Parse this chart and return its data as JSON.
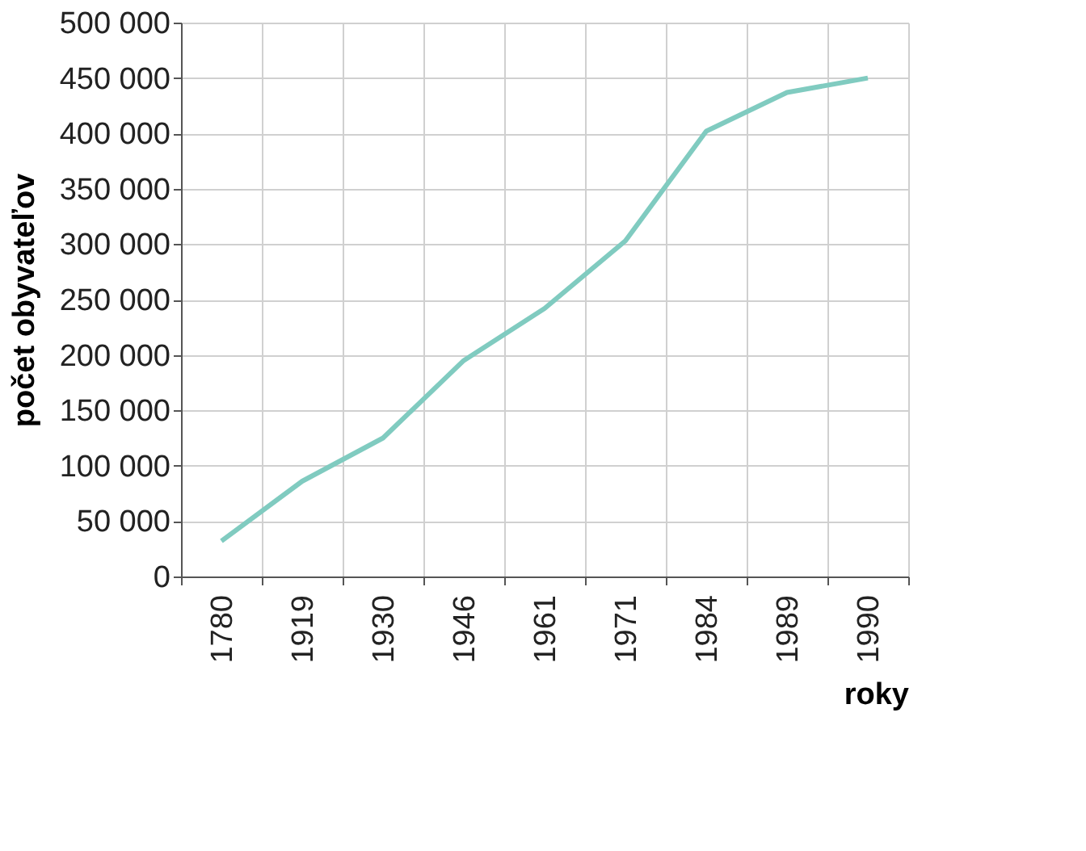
{
  "chart_data": {
    "type": "line",
    "xlabel": "roky",
    "ylabel": "počet obyvateľov",
    "categories": [
      "1780",
      "1919",
      "1930",
      "1946",
      "1961",
      "1971",
      "1984",
      "1989",
      "1990"
    ],
    "series": [
      {
        "color": "#80cbc0",
        "values": [
          32000,
          86000,
          125000,
          195000,
          242000,
          303000,
          402000,
          437000,
          450000
        ]
      }
    ],
    "ylim": [
      0,
      500000
    ],
    "yticks": [
      {
        "value": 0,
        "label": "0"
      },
      {
        "value": 50000,
        "label": "50 000"
      },
      {
        "value": 100000,
        "label": "100 000"
      },
      {
        "value": 150000,
        "label": "150 000"
      },
      {
        "value": 200000,
        "label": "200 000"
      },
      {
        "value": 250000,
        "label": "250 000"
      },
      {
        "value": 300000,
        "label": "300 000"
      },
      {
        "value": 350000,
        "label": "350 000"
      },
      {
        "value": 400000,
        "label": "400 000"
      },
      {
        "value": 450000,
        "label": "450 000"
      },
      {
        "value": 500000,
        "label": "500 000"
      }
    ],
    "grid": true,
    "marker": "none",
    "line_style": "solid"
  }
}
